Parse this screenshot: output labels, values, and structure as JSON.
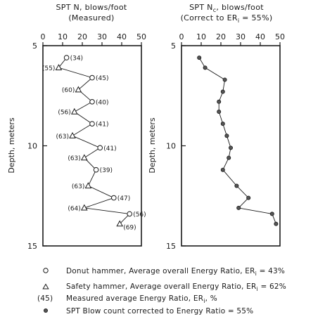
{
  "chart_data": [
    {
      "type": "line",
      "title": "SPT N, blows/foot",
      "subtitle": "(Measured)",
      "xlabel": "SPT N, blows/foot",
      "ylabel": "Depth, meters",
      "xlim": [
        0,
        50
      ],
      "ylim": [
        5,
        15
      ],
      "y_inverted": true,
      "x_axis_position": "top",
      "xticks": [
        "0",
        "10",
        "20",
        "30",
        "40",
        "50"
      ],
      "yticks": [
        "5",
        "10",
        "15"
      ],
      "grid": false,
      "series": [
        {
          "points": [
            {
              "depth": 5.6,
              "n": 12,
              "hammer": "donut",
              "er_label": "(34)"
            },
            {
              "depth": 6.1,
              "n": 8,
              "hammer": "safety",
              "er_label": "(55)"
            },
            {
              "depth": 6.6,
              "n": 25,
              "hammer": "donut",
              "er_label": "(45)"
            },
            {
              "depth": 7.2,
              "n": 18,
              "hammer": "safety",
              "er_label": "(60)"
            },
            {
              "depth": 7.8,
              "n": 25,
              "hammer": "donut",
              "er_label": "(40)"
            },
            {
              "depth": 8.3,
              "n": 16,
              "hammer": "safety",
              "er_label": "(56)"
            },
            {
              "depth": 8.9,
              "n": 25,
              "hammer": "donut",
              "er_label": "(41)"
            },
            {
              "depth": 9.5,
              "n": 15,
              "hammer": "safety",
              "er_label": "(63)"
            },
            {
              "depth": 10.1,
              "n": 29,
              "hammer": "donut",
              "er_label": "(41)"
            },
            {
              "depth": 10.6,
              "n": 21,
              "hammer": "safety",
              "er_label": "(63)"
            },
            {
              "depth": 11.2,
              "n": 27,
              "hammer": "donut",
              "er_label": "(39)"
            },
            {
              "depth": 12.0,
              "n": 23,
              "hammer": "safety",
              "er_label": "(63)"
            },
            {
              "depth": 12.6,
              "n": 36,
              "hammer": "donut",
              "er_label": "(47)"
            },
            {
              "depth": 13.1,
              "n": 21,
              "hammer": "safety",
              "er_label": "(64)"
            },
            {
              "depth": 13.4,
              "n": 44,
              "hammer": "donut",
              "er_label": "(56)"
            },
            {
              "depth": 13.9,
              "n": 39,
              "hammer": "safety",
              "er_label": "(69)"
            }
          ]
        }
      ]
    },
    {
      "type": "line",
      "title": "SPT Nc, blows/foot",
      "subtitle": "(Correct to ERi = 55%)",
      "xlabel": "SPT Nc, blows/foot",
      "ylabel": "Depth, meters",
      "xlim": [
        0,
        50
      ],
      "ylim": [
        5,
        15
      ],
      "y_inverted": true,
      "x_axis_position": "top",
      "xticks": [
        "0",
        "10",
        "20",
        "30",
        "40",
        "50"
      ],
      "yticks": [
        "5",
        "10",
        "15"
      ],
      "grid": false,
      "series": [
        {
          "points": [
            {
              "depth": 5.6,
              "nc": 9
            },
            {
              "depth": 6.1,
              "nc": 12
            },
            {
              "depth": 6.7,
              "nc": 22
            },
            {
              "depth": 7.3,
              "nc": 21
            },
            {
              "depth": 7.8,
              "nc": 19
            },
            {
              "depth": 8.3,
              "nc": 19
            },
            {
              "depth": 8.9,
              "nc": 21
            },
            {
              "depth": 9.5,
              "nc": 23
            },
            {
              "depth": 10.1,
              "nc": 25
            },
            {
              "depth": 10.6,
              "nc": 24
            },
            {
              "depth": 11.2,
              "nc": 21
            },
            {
              "depth": 12.0,
              "nc": 28
            },
            {
              "depth": 12.6,
              "nc": 34
            },
            {
              "depth": 13.1,
              "nc": 29
            },
            {
              "depth": 13.4,
              "nc": 46
            },
            {
              "depth": 13.9,
              "nc": 48
            }
          ]
        }
      ]
    }
  ],
  "left": {
    "title_pre": "SPT N, blows/foot",
    "subtitle": "(Measured)",
    "ylabel": "Depth, meters"
  },
  "right": {
    "title_pre": "SPT N",
    "title_sub": "c",
    "title_post": ", blows/foot",
    "subtitle_pre": "(Correct to ER",
    "subtitle_sub": "i",
    "subtitle_post": " = 55%)",
    "ylabel": "Depth, meters"
  },
  "legend": {
    "donut": {
      "pre": "Donut hammer, Average overall Energy Ratio, ER",
      "sub": "i",
      "post": " = 43%"
    },
    "safety": {
      "pre": "Safety hammer, Average overall Energy Ratio, ER",
      "sub": "i",
      "post": " = 62%"
    },
    "measured": {
      "key": "(45)",
      "pre": "Measured average Energy Ratio, ER",
      "sub": "i",
      "post": ", %"
    },
    "corrected": {
      "text": "SPT Blow count corrected to Energy Ratio = 55%"
    }
  }
}
